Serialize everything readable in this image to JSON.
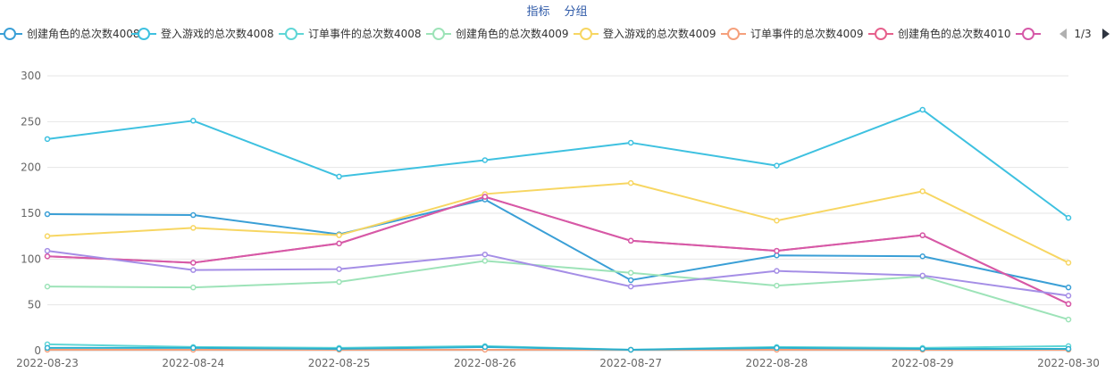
{
  "tabs": [
    "指标",
    "分组"
  ],
  "chart_data": {
    "type": "line",
    "categories": [
      "2022-08-23",
      "2022-08-24",
      "2022-08-25",
      "2022-08-26",
      "2022-08-27",
      "2022-08-28",
      "2022-08-29",
      "2022-08-30"
    ],
    "ylim": [
      0,
      300
    ],
    "yticks": [
      0,
      50,
      100,
      150,
      200,
      250,
      300
    ],
    "grid": true,
    "legend_position": "top",
    "legend_page": "1/3",
    "series": [
      {
        "name": "创建角色的总次数4008",
        "color": "#3a9fd6",
        "values": [
          149,
          148,
          127,
          165,
          77,
          104,
          103,
          69
        ]
      },
      {
        "name": "登入游戏的总次数4008",
        "color": "#3ec1e0",
        "values": [
          231,
          251,
          190,
          208,
          227,
          202,
          263,
          145
        ]
      },
      {
        "name": "订单事件的总次数4008",
        "color": "#5fd6d6",
        "values": [
          7,
          4,
          3,
          5,
          1,
          4,
          3,
          5
        ]
      },
      {
        "name": "创建角色的总次数4009",
        "color": "#9de3b8",
        "values": [
          70,
          69,
          75,
          98,
          85,
          71,
          81,
          34
        ]
      },
      {
        "name": "登入游戏的总次数4009",
        "color": "#f7d662",
        "values": [
          125,
          134,
          126,
          171,
          183,
          142,
          174,
          96
        ]
      },
      {
        "name": "订单事件的总次数4009",
        "color": "#f5a07c",
        "values": [
          1,
          1,
          1,
          1,
          1,
          1,
          1,
          1
        ]
      },
      {
        "name": "创建角色的总次数4010",
        "color": "#e6608c",
        "values": [
          103,
          96,
          117,
          168,
          120,
          109,
          126,
          51
        ]
      },
      {
        "name": "",
        "color": "#d659a8",
        "values": [
          103,
          96,
          117,
          168,
          120,
          109,
          126,
          51
        ]
      },
      {
        "name": "",
        "color": "#a58ee6",
        "values": [
          109,
          88,
          89,
          105,
          70,
          87,
          82,
          60
        ]
      },
      {
        "name": "",
        "color": "#2ab0d0",
        "values": [
          3,
          3,
          2,
          4,
          1,
          3,
          2,
          2
        ]
      }
    ]
  }
}
